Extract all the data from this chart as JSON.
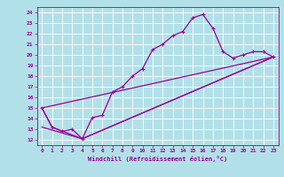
{
  "xlabel": "Windchill (Refroidissement éolien,°C)",
  "bg_color": "#b2e0e8",
  "line_color": "#990099",
  "grid_color": "#ffffff",
  "xlim": [
    -0.5,
    23.5
  ],
  "ylim": [
    11.5,
    24.5
  ],
  "xticks": [
    0,
    1,
    2,
    3,
    4,
    5,
    6,
    7,
    8,
    9,
    10,
    11,
    12,
    13,
    14,
    15,
    16,
    17,
    18,
    19,
    20,
    21,
    22,
    23
  ],
  "yticks": [
    12,
    13,
    14,
    15,
    16,
    17,
    18,
    19,
    20,
    21,
    22,
    23,
    24
  ],
  "line1_x": [
    0,
    1,
    2,
    3,
    4,
    5,
    6,
    7,
    8,
    9,
    10,
    11,
    12,
    13,
    14,
    15,
    16,
    17,
    18,
    19,
    20,
    21,
    22,
    23
  ],
  "line1_y": [
    15.0,
    13.2,
    12.8,
    13.0,
    12.1,
    14.1,
    14.3,
    16.5,
    17.0,
    18.0,
    18.7,
    20.5,
    21.0,
    21.8,
    22.2,
    23.5,
    23.8,
    22.5,
    20.3,
    19.7,
    20.0,
    20.3,
    20.3,
    19.8
  ],
  "line2_x": [
    0,
    23
  ],
  "line2_y": [
    15.0,
    19.8
  ],
  "line3_x": [
    0,
    1,
    4,
    23
  ],
  "line3_y": [
    15.0,
    13.2,
    12.1,
    19.8
  ],
  "line4_x": [
    0,
    4,
    23
  ],
  "line4_y": [
    13.2,
    12.1,
    19.8
  ]
}
